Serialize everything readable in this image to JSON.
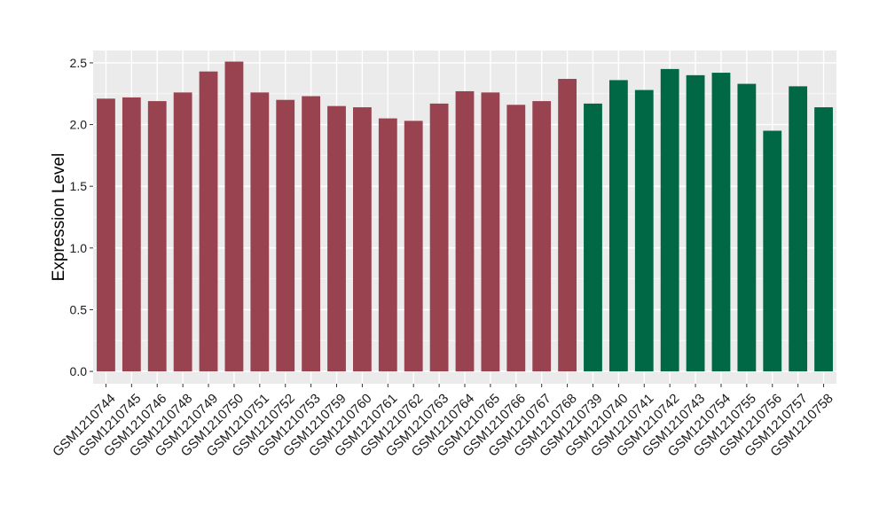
{
  "chart_data": {
    "type": "bar",
    "title": "",
    "xlabel": "",
    "ylabel": "Expression Level",
    "ylim": [
      -0.1,
      2.6
    ],
    "yticks": [
      0.0,
      0.5,
      1.0,
      1.5,
      2.0,
      2.5
    ],
    "ytick_labels": [
      "0.0",
      "0.5",
      "1.0",
      "1.5",
      "2.0",
      "2.5"
    ],
    "grid": true,
    "background_color": "#ebebeb",
    "categories": [
      "GSM1210744",
      "GSM1210745",
      "GSM1210746",
      "GSM1210748",
      "GSM1210749",
      "GSM1210750",
      "GSM1210751",
      "GSM1210752",
      "GSM1210753",
      "GSM1210759",
      "GSM1210760",
      "GSM1210761",
      "GSM1210762",
      "GSM1210763",
      "GSM1210764",
      "GSM1210765",
      "GSM1210766",
      "GSM1210767",
      "GSM1210768",
      "GSM1210739",
      "GSM1210740",
      "GSM1210741",
      "GSM1210742",
      "GSM1210743",
      "GSM1210754",
      "GSM1210755",
      "GSM1210756",
      "GSM1210757",
      "GSM1210758"
    ],
    "values": [
      2.21,
      2.22,
      2.19,
      2.26,
      2.43,
      2.51,
      2.26,
      2.2,
      2.23,
      2.15,
      2.14,
      2.05,
      2.03,
      2.17,
      2.27,
      2.26,
      2.16,
      2.19,
      2.37,
      2.17,
      2.36,
      2.28,
      2.45,
      2.4,
      2.42,
      2.33,
      1.95,
      2.31,
      2.14
    ],
    "groups": [
      0,
      0,
      0,
      0,
      0,
      0,
      0,
      0,
      0,
      0,
      0,
      0,
      0,
      0,
      0,
      0,
      0,
      0,
      0,
      1,
      1,
      1,
      1,
      1,
      1,
      1,
      1,
      1,
      1
    ],
    "group_colors": [
      "#9a4350",
      "#006845"
    ]
  }
}
